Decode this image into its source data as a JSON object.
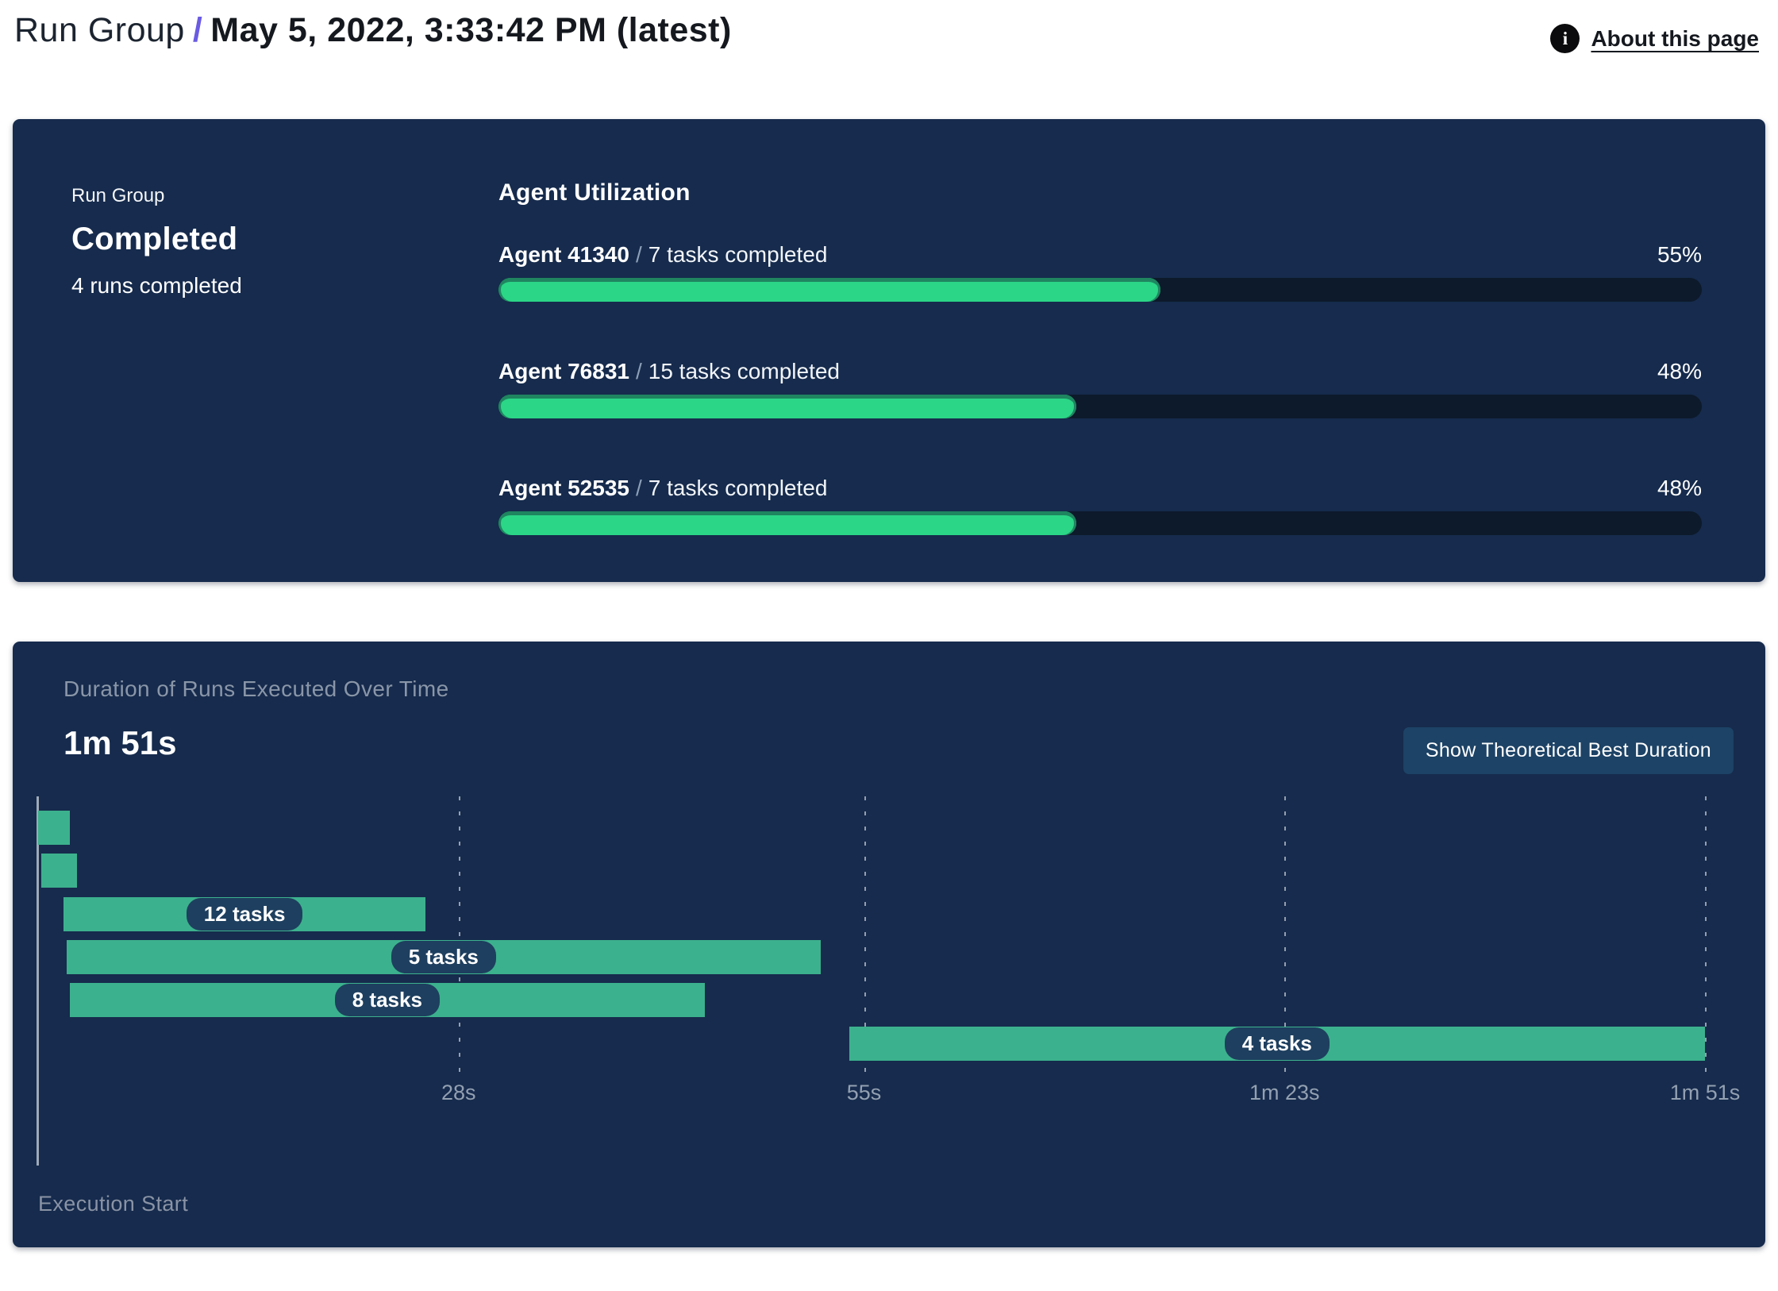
{
  "page": {
    "title_prefix": "Run Group",
    "title_separator": "/",
    "title_main": "May 5, 2022, 3:33:42 PM (latest)",
    "about_link": "About this page",
    "info_icon_glyph": "i"
  },
  "summary": {
    "label": "Run Group",
    "status": "Completed",
    "runs_completed": "4 runs completed"
  },
  "agent_utilization": {
    "heading": "Agent Utilization",
    "agents": [
      {
        "name": "Agent 41340",
        "separator": "/",
        "tasks": "7 tasks completed",
        "percent": "55%",
        "percent_value": 55
      },
      {
        "name": "Agent 76831",
        "separator": "/",
        "tasks": "15 tasks completed",
        "percent": "48%",
        "percent_value": 48
      },
      {
        "name": "Agent 52535",
        "separator": "/",
        "tasks": "7 tasks completed",
        "percent": "48%",
        "percent_value": 48
      }
    ]
  },
  "duration_panel": {
    "subtitle": "Duration of Runs Executed Over Time",
    "total_duration": "1m 51s",
    "button_label": "Show Theoretical Best Duration",
    "execution_start_label": "Execution Start"
  },
  "chart_data": {
    "type": "gantt",
    "title": "Duration of Runs Executed Over Time",
    "total_duration_label": "1m 51s",
    "axis": {
      "min_s": 0,
      "max_s": 111,
      "ticks": [
        {
          "label": "28s",
          "t": 28
        },
        {
          "label": "55s",
          "t": 55
        },
        {
          "label": "1m 23s",
          "t": 83
        },
        {
          "label": "1m 51s",
          "t": 111
        }
      ]
    },
    "bars": [
      {
        "label": "",
        "start_s": 0.0,
        "end_s": 2.1
      },
      {
        "label": "",
        "start_s": 0.2,
        "end_s": 2.6
      },
      {
        "label": "12 tasks",
        "start_s": 1.7,
        "end_s": 25.8
      },
      {
        "label": "5 tasks",
        "start_s": 1.9,
        "end_s": 52.1
      },
      {
        "label": "8 tasks",
        "start_s": 2.1,
        "end_s": 44.4
      },
      {
        "label": "4 tasks",
        "start_s": 54.0,
        "end_s": 111.0
      }
    ],
    "x_axis_origin_label": "Execution Start",
    "legend": null,
    "grid": "vertical-dashed"
  },
  "colors": {
    "panel_bg": "#162b4d",
    "progress_fill": "#2bd687",
    "progress_fill_rim": "#1f8560",
    "progress_track": "#0d1a2b",
    "gantt_bar": "#3cb18d",
    "gantt_pill_bg": "#1e3f5f",
    "accent_slash": "#6a5be2",
    "button_bg": "#1d4366",
    "muted_text": "#8a96a8"
  }
}
